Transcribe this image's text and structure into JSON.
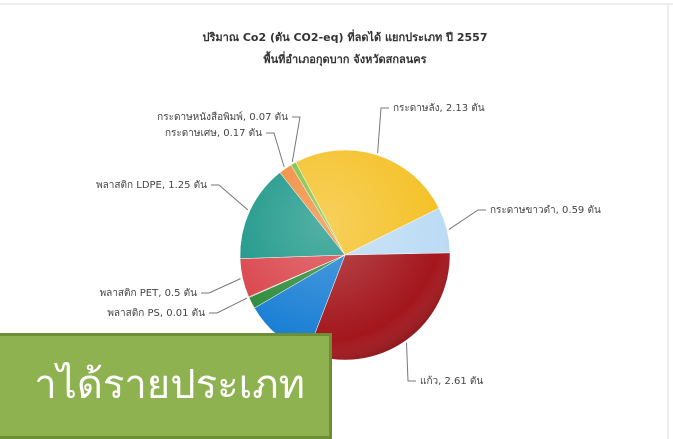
{
  "chart_data": {
    "type": "pie",
    "title": "ปริมาณ Co2 (ตัน CO2-eq) ที่ลดได้    แยกประเภท ปี 2557",
    "subtitle": "พื้นที่อำเภอกุดบาก จังหวัดสกลนคร",
    "values": [
      2.13,
      0.59,
      2.61,
      0.9,
      0.15,
      0.01,
      0.5,
      1.25,
      0.17,
      0.07
    ],
    "value_labels": [
      "กระดาษลัง, 2.13 ตัน",
      "กระดาษขาวดำ, 0.59 ตัน",
      "แก้ว, 2.61 ตัน",
      null,
      null,
      "พลาสติก PS, 0.01 ตัน",
      "พลาสติก PET, 0.5 ตัน",
      "พลาสติก LDPE, 1.25 ตัน",
      "กระดาษเศษ, 0.17 ตัน",
      "กระดาษหนังสือพิมพ์, 0.07 ตัน"
    ],
    "colors": [
      "#f5c127",
      "#bcdcf5",
      "#a3161c",
      "#1a7fd4",
      "#2e8b3a",
      "#4f6b2a",
      "#d9444a",
      "#1a9688",
      "#f08a3c",
      "#7cc242"
    ]
  },
  "overlay_text": "าได้รายประเภท"
}
